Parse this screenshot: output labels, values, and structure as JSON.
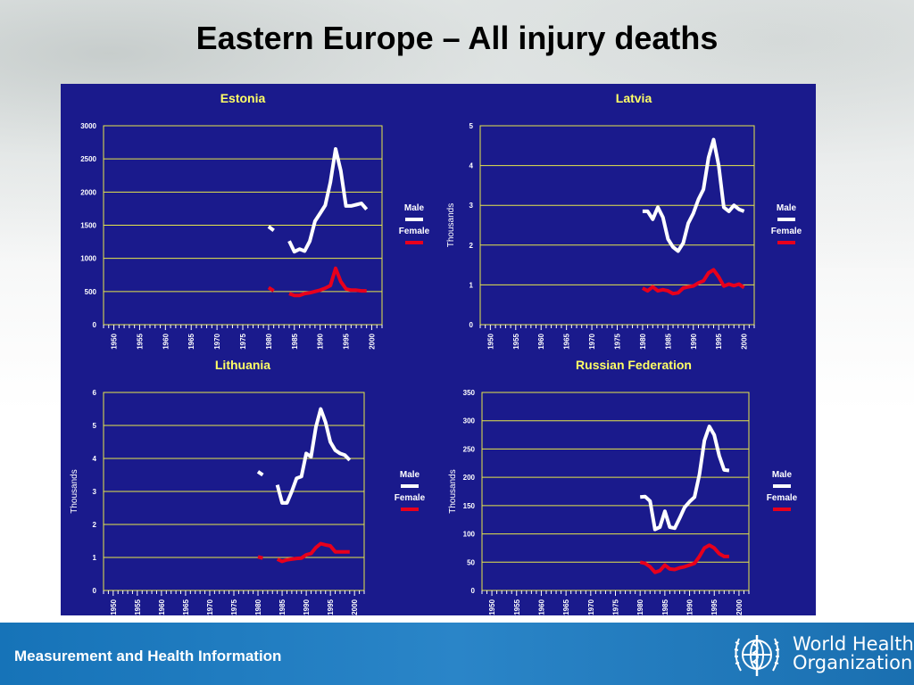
{
  "slide": {
    "title": "Eastern Europe – All injury deaths"
  },
  "footer": {
    "text": "Measurement and Health Information",
    "logo_text": "World Health Organization",
    "logo_line1": "World Health",
    "logo_line2": "Organization"
  },
  "colors": {
    "panel": "#1a1a8c",
    "male": "#ffffff",
    "female": "#e8001c",
    "grid": "#e8e84a",
    "title": "#ffff66"
  },
  "chart_data": [
    {
      "type": "line",
      "title": "Estonia",
      "ylabel": "",
      "ylim": [
        0,
        3000
      ],
      "yticks": [
        0,
        500,
        1000,
        1500,
        2000,
        2500,
        3000
      ],
      "xlim": [
        1948,
        2002
      ],
      "xticks": [
        1950,
        1955,
        1960,
        1965,
        1970,
        1975,
        1980,
        1985,
        1990,
        1995,
        2000
      ],
      "grid": true,
      "legend": "right",
      "series": [
        {
          "name": "Male",
          "color": "#ffffff",
          "segments": [
            [
              [
                1980,
                1480
              ],
              [
                1981,
                1420
              ]
            ],
            [
              [
                1984,
                1260
              ],
              [
                1985,
                1100
              ],
              [
                1986,
                1140
              ],
              [
                1987,
                1110
              ],
              [
                1988,
                1260
              ],
              [
                1989,
                1560
              ],
              [
                1990,
                1680
              ],
              [
                1991,
                1800
              ],
              [
                1992,
                2150
              ],
              [
                1993,
                2650
              ],
              [
                1994,
                2320
              ],
              [
                1995,
                1790
              ],
              [
                1996,
                1790
              ],
              [
                1997,
                1810
              ],
              [
                1998,
                1830
              ],
              [
                1999,
                1740
              ]
            ]
          ]
        },
        {
          "name": "Female",
          "color": "#e8001c",
          "segments": [
            [
              [
                1980,
                560
              ],
              [
                1981,
                510
              ]
            ],
            [
              [
                1984,
                470
              ],
              [
                1985,
                440
              ],
              [
                1986,
                440
              ],
              [
                1987,
                470
              ],
              [
                1988,
                480
              ],
              [
                1989,
                500
              ],
              [
                1990,
                520
              ],
              [
                1991,
                550
              ],
              [
                1992,
                590
              ],
              [
                1993,
                850
              ],
              [
                1994,
                650
              ],
              [
                1995,
                540
              ],
              [
                1996,
                520
              ],
              [
                1997,
                520
              ],
              [
                1998,
                510
              ],
              [
                1999,
                510
              ]
            ]
          ]
        }
      ]
    },
    {
      "type": "line",
      "title": "Latvia",
      "ylabel": "Thousands",
      "ylim": [
        0,
        5
      ],
      "yticks": [
        0,
        1,
        2,
        3,
        4,
        5
      ],
      "xlim": [
        1948,
        2002
      ],
      "xticks": [
        1950,
        1955,
        1960,
        1965,
        1970,
        1975,
        1980,
        1985,
        1990,
        1995,
        2000
      ],
      "grid": true,
      "legend": "right",
      "series": [
        {
          "name": "Male",
          "color": "#ffffff",
          "segments": [
            [
              [
                1980,
                2.85
              ],
              [
                1981,
                2.85
              ],
              [
                1982,
                2.65
              ],
              [
                1983,
                2.95
              ],
              [
                1984,
                2.7
              ],
              [
                1985,
                2.15
              ],
              [
                1986,
                1.95
              ],
              [
                1987,
                1.85
              ],
              [
                1988,
                2.05
              ],
              [
                1989,
                2.55
              ],
              [
                1990,
                2.8
              ],
              [
                1991,
                3.15
              ],
              [
                1992,
                3.4
              ],
              [
                1993,
                4.2
              ],
              [
                1994,
                4.65
              ],
              [
                1995,
                4.0
              ],
              [
                1996,
                2.95
              ],
              [
                1997,
                2.85
              ],
              [
                1998,
                3.0
              ],
              [
                1999,
                2.9
              ],
              [
                2000,
                2.85
              ]
            ]
          ]
        },
        {
          "name": "Female",
          "color": "#e8001c",
          "segments": [
            [
              [
                1980,
                0.92
              ],
              [
                1981,
                0.85
              ],
              [
                1982,
                0.95
              ],
              [
                1983,
                0.85
              ],
              [
                1984,
                0.88
              ],
              [
                1985,
                0.85
              ],
              [
                1986,
                0.78
              ],
              [
                1987,
                0.8
              ],
              [
                1988,
                0.92
              ],
              [
                1989,
                0.95
              ],
              [
                1990,
                0.97
              ],
              [
                1991,
                1.05
              ],
              [
                1992,
                1.1
              ],
              [
                1993,
                1.3
              ],
              [
                1994,
                1.38
              ],
              [
                1995,
                1.2
              ],
              [
                1996,
                0.97
              ],
              [
                1997,
                1.02
              ],
              [
                1998,
                0.98
              ],
              [
                1999,
                1.02
              ],
              [
                2000,
                0.93
              ]
            ]
          ]
        }
      ]
    },
    {
      "type": "line",
      "title": "Lithuania",
      "ylabel": "Thousands",
      "ylim": [
        0,
        6
      ],
      "yticks": [
        0,
        1,
        2,
        3,
        4,
        5,
        6
      ],
      "xlim": [
        1948,
        2002
      ],
      "xticks": [
        1950,
        1955,
        1960,
        1965,
        1970,
        1975,
        1980,
        1985,
        1990,
        1995,
        2000
      ],
      "grid": true,
      "legend": "right",
      "series": [
        {
          "name": "Male",
          "color": "#ffffff",
          "segments": [
            [
              [
                1980,
                3.6
              ],
              [
                1981,
                3.5
              ]
            ],
            [
              [
                1984,
                3.2
              ],
              [
                1985,
                2.65
              ],
              [
                1986,
                2.65
              ],
              [
                1987,
                3.0
              ],
              [
                1988,
                3.4
              ],
              [
                1989,
                3.45
              ],
              [
                1990,
                4.15
              ],
              [
                1991,
                4.05
              ],
              [
                1992,
                4.95
              ],
              [
                1993,
                5.5
              ],
              [
                1994,
                5.1
              ],
              [
                1995,
                4.5
              ],
              [
                1996,
                4.25
              ],
              [
                1997,
                4.15
              ],
              [
                1998,
                4.1
              ],
              [
                1999,
                3.95
              ]
            ]
          ]
        },
        {
          "name": "Female",
          "color": "#e8001c",
          "segments": [
            [
              [
                1980,
                1.02
              ],
              [
                1981,
                0.98
              ]
            ],
            [
              [
                1984,
                0.95
              ],
              [
                1985,
                0.88
              ],
              [
                1986,
                0.93
              ],
              [
                1987,
                0.95
              ],
              [
                1988,
                0.97
              ],
              [
                1989,
                0.98
              ],
              [
                1990,
                1.08
              ],
              [
                1991,
                1.12
              ],
              [
                1992,
                1.3
              ],
              [
                1993,
                1.42
              ],
              [
                1994,
                1.38
              ],
              [
                1995,
                1.35
              ],
              [
                1996,
                1.17
              ],
              [
                1997,
                1.17
              ],
              [
                1998,
                1.17
              ],
              [
                1999,
                1.17
              ]
            ]
          ]
        }
      ]
    },
    {
      "type": "line",
      "title": "Russian Federation",
      "ylabel": "Thousands",
      "ylim": [
        0,
        350
      ],
      "yticks": [
        0,
        50,
        100,
        150,
        200,
        250,
        300,
        350
      ],
      "xlim": [
        1948,
        2002
      ],
      "xticks": [
        1950,
        1955,
        1960,
        1965,
        1970,
        1975,
        1980,
        1985,
        1990,
        1995,
        2000
      ],
      "grid": true,
      "legend": "right",
      "series": [
        {
          "name": "Male",
          "color": "#ffffff",
          "segments": [
            [
              [
                1980,
                165
              ],
              [
                1981,
                166
              ],
              [
                1982,
                158
              ],
              [
                1983,
                108
              ],
              [
                1984,
                112
              ],
              [
                1985,
                140
              ],
              [
                1986,
                112
              ],
              [
                1987,
                110
              ],
              [
                1988,
                128
              ],
              [
                1989,
                147
              ],
              [
                1990,
                157
              ],
              [
                1991,
                165
              ],
              [
                1992,
                205
              ],
              [
                1993,
                265
              ],
              [
                1994,
                290
              ],
              [
                1995,
                275
              ],
              [
                1996,
                238
              ],
              [
                1997,
                213
              ],
              [
                1998,
                212
              ]
            ]
          ]
        },
        {
          "name": "Female",
          "color": "#e8001c",
          "segments": [
            [
              [
                1980,
                50
              ],
              [
                1981,
                48
              ],
              [
                1982,
                42
              ],
              [
                1983,
                32
              ],
              [
                1984,
                35
              ],
              [
                1985,
                45
              ],
              [
                1986,
                38
              ],
              [
                1987,
                37
              ],
              [
                1988,
                40
              ],
              [
                1989,
                42
              ],
              [
                1990,
                45
              ],
              [
                1991,
                48
              ],
              [
                1992,
                60
              ],
              [
                1993,
                75
              ],
              [
                1994,
                80
              ],
              [
                1995,
                75
              ],
              [
                1996,
                65
              ],
              [
                1997,
                60
              ],
              [
                1998,
                60
              ]
            ]
          ]
        }
      ]
    }
  ]
}
